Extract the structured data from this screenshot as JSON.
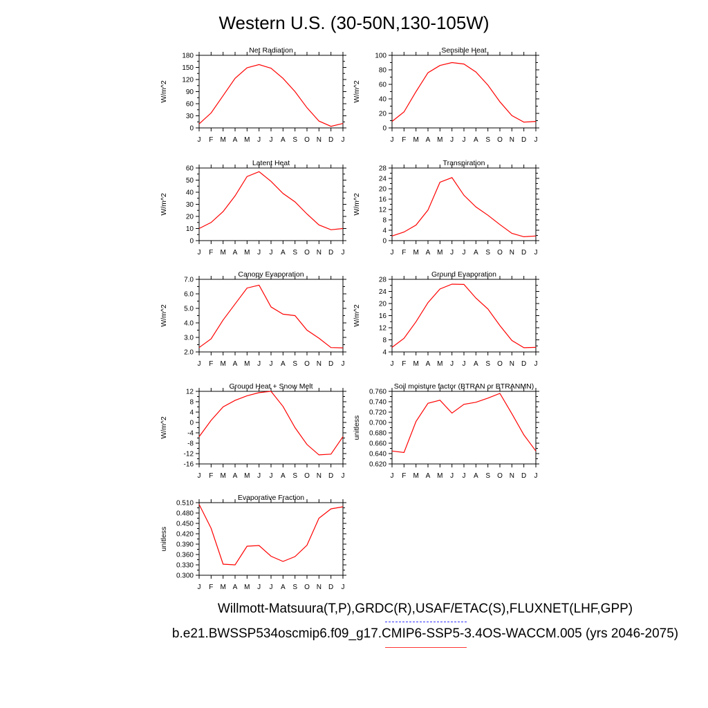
{
  "title": "Western U.S. (30-50N,130-105W)",
  "captions": {
    "obs": "Willmott-Matsuura(T,P),GRDC(R),USAF/ETAC(S),FLUXNET(LHF,GPP)",
    "model": "b.e21.BWSSP534oscmip6.f09_g17.CMIP6-SSP5-3.4OS-WACCM.005 (yrs 2046-2075)"
  },
  "colors": {
    "model_line": "#ff0000",
    "obs_line": "#3333ff",
    "axis": "#000000"
  },
  "chart_data": [
    {
      "type": "line",
      "title": "Net Radiation",
      "ylabel": "W/m^2",
      "categories": [
        "J",
        "F",
        "M",
        "A",
        "M",
        "J",
        "J",
        "A",
        "S",
        "O",
        "N",
        "D",
        "J"
      ],
      "ylim": [
        0,
        180
      ],
      "yticks": [
        "0",
        "30",
        "60",
        "90",
        "120",
        "150",
        "180"
      ],
      "grid": false,
      "series": [
        {
          "values": [
            10,
            37,
            80,
            123,
            149,
            157,
            148,
            123,
            90,
            50,
            17,
            4,
            11
          ]
        }
      ]
    },
    {
      "type": "line",
      "title": "Sensible Heat",
      "ylabel": "W/m^2",
      "categories": [
        "J",
        "F",
        "M",
        "A",
        "M",
        "J",
        "J",
        "A",
        "S",
        "O",
        "N",
        "D",
        "J"
      ],
      "ylim": [
        0,
        100
      ],
      "yticks": [
        "0",
        "20",
        "40",
        "60",
        "80",
        "100"
      ],
      "grid": false,
      "series": [
        {
          "values": [
            9,
            22,
            50,
            76,
            86,
            90,
            88,
            77,
            59,
            36,
            17,
            8,
            9
          ]
        }
      ]
    },
    {
      "type": "line",
      "title": "Latent Heat",
      "ylabel": "W/m^2",
      "categories": [
        "J",
        "F",
        "M",
        "A",
        "M",
        "J",
        "J",
        "A",
        "S",
        "O",
        "N",
        "D",
        "J"
      ],
      "ylim": [
        0,
        60
      ],
      "yticks": [
        "0",
        "10",
        "20",
        "30",
        "40",
        "50",
        "60"
      ],
      "grid": false,
      "series": [
        {
          "values": [
            10,
            15,
            24,
            37,
            53,
            57,
            49,
            39,
            32,
            22,
            13,
            9,
            10
          ]
        }
      ]
    },
    {
      "type": "line",
      "title": "Transpiration",
      "ylabel": "W/m^2",
      "categories": [
        "J",
        "F",
        "M",
        "A",
        "M",
        "J",
        "J",
        "A",
        "S",
        "O",
        "N",
        "D",
        "J"
      ],
      "ylim": [
        0,
        28
      ],
      "yticks": [
        "0",
        "4",
        "8",
        "12",
        "16",
        "20",
        "24",
        "28"
      ],
      "grid": false,
      "series": [
        {
          "values": [
            1.8,
            3.3,
            6,
            11.8,
            22.5,
            24.3,
            17.5,
            13,
            9.8,
            6.2,
            2.8,
            1.5,
            1.8
          ]
        }
      ]
    },
    {
      "type": "line",
      "title": "Canopy Evaporation",
      "ylabel": "W/m^2",
      "categories": [
        "J",
        "F",
        "M",
        "A",
        "M",
        "J",
        "J",
        "A",
        "S",
        "O",
        "N",
        "D",
        "J"
      ],
      "ylim": [
        2.0,
        7.0
      ],
      "yticks": [
        "2.0",
        "3.0",
        "4.0",
        "5.0",
        "6.0",
        "7.0"
      ],
      "grid": false,
      "series": [
        {
          "values": [
            2.3,
            2.9,
            4.2,
            5.3,
            6.4,
            6.6,
            5.1,
            4.6,
            4.5,
            3.5,
            2.95,
            2.3,
            2.28
          ]
        }
      ]
    },
    {
      "type": "line",
      "title": "Ground Evaporation",
      "ylabel": "W/m^2",
      "categories": [
        "J",
        "F",
        "M",
        "A",
        "M",
        "J",
        "J",
        "A",
        "S",
        "O",
        "N",
        "D",
        "J"
      ],
      "ylim": [
        4,
        28
      ],
      "yticks": [
        "4",
        "8",
        "12",
        "16",
        "20",
        "24",
        "28"
      ],
      "grid": false,
      "series": [
        {
          "values": [
            5.5,
            8.5,
            14,
            20.3,
            24.8,
            26.4,
            26.3,
            21.8,
            18.2,
            12.7,
            7.8,
            5.4,
            5.5
          ]
        }
      ]
    },
    {
      "type": "line",
      "title": "Ground Heat + Snow Melt",
      "ylabel": "W/m^2",
      "categories": [
        "J",
        "F",
        "M",
        "A",
        "M",
        "J",
        "J",
        "A",
        "S",
        "O",
        "N",
        "D",
        "J"
      ],
      "ylim": [
        -16,
        12
      ],
      "yticks": [
        "-16",
        "-12",
        "-8",
        "-4",
        "0",
        "4",
        "8",
        "12"
      ],
      "grid": false,
      "series": [
        {
          "values": [
            -5.5,
            0.8,
            6,
            8.5,
            10.3,
            11.5,
            12,
            6.2,
            -2,
            -8.5,
            -12.5,
            -12.2,
            -5.5
          ]
        }
      ]
    },
    {
      "type": "line",
      "title": "Soil moisture factor (BTRAN or BTRANMN)",
      "ylabel": "unitless",
      "categories": [
        "J",
        "F",
        "M",
        "A",
        "M",
        "J",
        "J",
        "A",
        "S",
        "O",
        "N",
        "D",
        "J"
      ],
      "ylim": [
        0.62,
        0.76
      ],
      "yticks": [
        "0.620",
        "0.640",
        "0.660",
        "0.680",
        "0.700",
        "0.720",
        "0.740",
        "0.760"
      ],
      "grid": false,
      "series": [
        {
          "values": [
            0.645,
            0.642,
            0.702,
            0.737,
            0.743,
            0.718,
            0.735,
            0.739,
            0.747,
            0.756,
            0.717,
            0.676,
            0.645
          ]
        }
      ]
    },
    {
      "type": "line",
      "title": "Evaporative Fraction",
      "ylabel": "unitless",
      "categories": [
        "J",
        "F",
        "M",
        "A",
        "M",
        "J",
        "J",
        "A",
        "S",
        "O",
        "N",
        "D",
        "J"
      ],
      "ylim": [
        0.3,
        0.51
      ],
      "yticks": [
        "0.300",
        "0.330",
        "0.360",
        "0.390",
        "0.420",
        "0.450",
        "0.480",
        "0.510"
      ],
      "grid": false,
      "series": [
        {
          "values": [
            0.505,
            0.436,
            0.332,
            0.33,
            0.384,
            0.386,
            0.355,
            0.34,
            0.354,
            0.387,
            0.465,
            0.492,
            0.498
          ]
        }
      ]
    }
  ]
}
